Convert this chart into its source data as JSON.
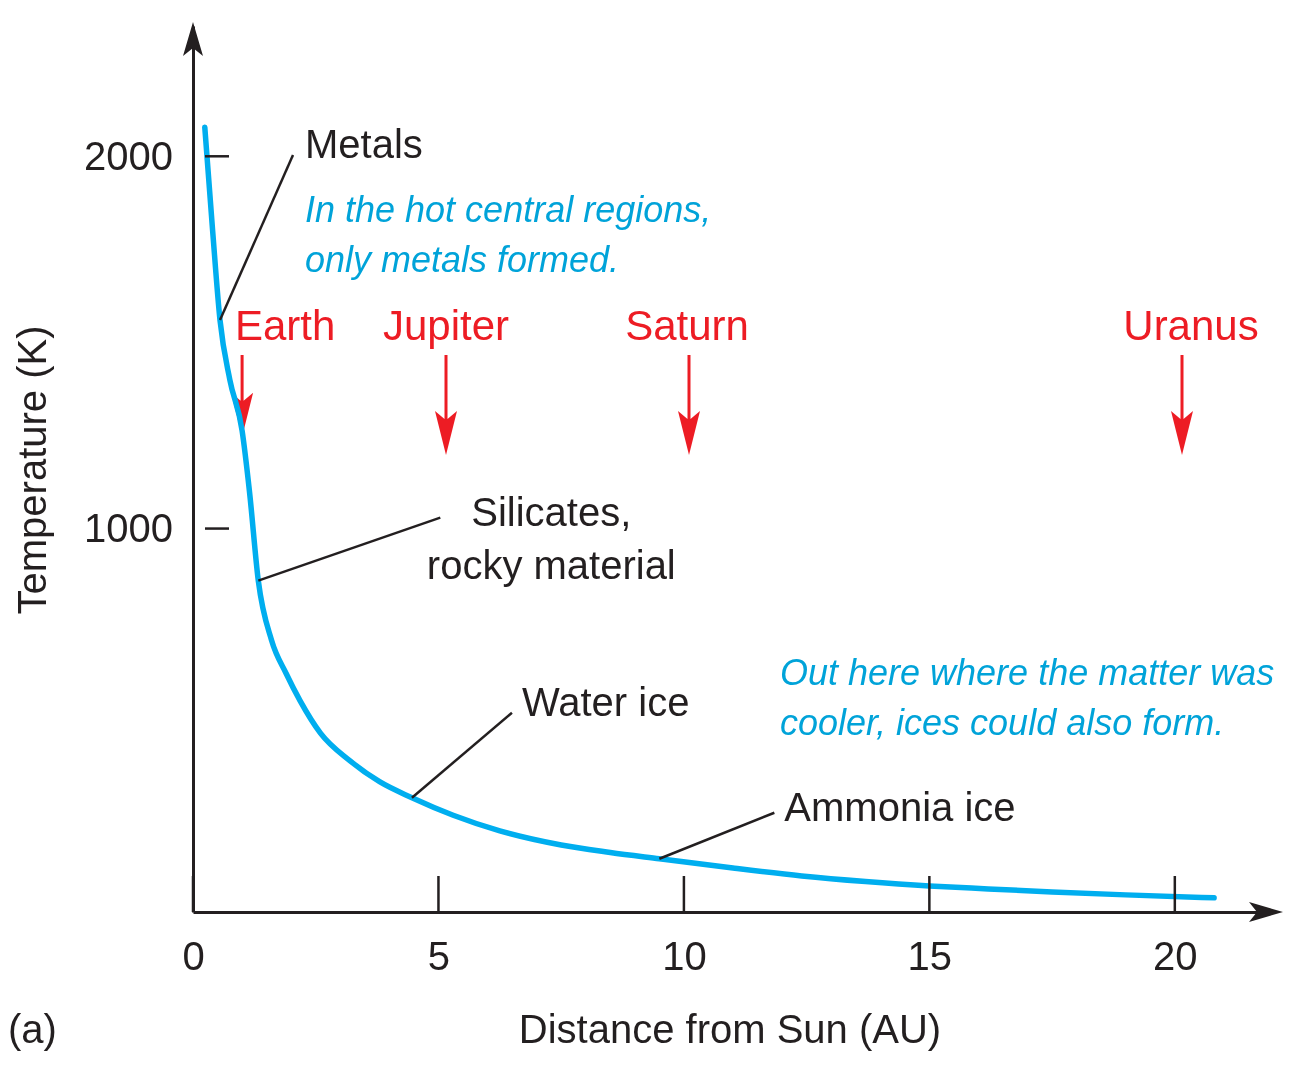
{
  "chart_data": {
    "type": "line",
    "xlabel": "Distance from Sun (AU)",
    "ylabel": "Temperature (K)",
    "xlim": [
      0,
      22
    ],
    "ylim": [
      -30,
      2350
    ],
    "xticks": [
      0,
      5,
      10,
      15,
      20
    ],
    "yticks": [
      {
        "value": 1000,
        "label": "1000"
      },
      {
        "value": 2000,
        "label": "2000"
      }
    ],
    "x": [
      0.24,
      0.4,
      0.55,
      0.75,
      1,
      1.15,
      1.33,
      1.6,
      1.9,
      2.18,
      2.6,
      3.2,
      3.8,
      4.46,
      5.3,
      6.25,
      7.5,
      8.5,
      9.5,
      11,
      12.4,
      13.7,
      15,
      16.2,
      17.5,
      19,
      20.8
    ],
    "series": [
      {
        "color": "#00aeef",
        "values": [
          2078,
          1800,
          1560,
          1400,
          1263,
          1100,
          860,
          700,
          610,
          538,
          450,
          376,
          320,
          277,
          230,
          188,
          150,
          130,
          113,
          88,
          67,
          52,
          40,
          32,
          24,
          16,
          8
        ]
      }
    ],
    "marker": "none",
    "line_style": "solid",
    "grid": false,
    "annotations": [
      {
        "text": "Metals",
        "x": 0.55,
        "y": 1560
      },
      {
        "text": "Silicates, rocky material",
        "x": 1.33,
        "y": 860
      },
      {
        "text": "Water ice",
        "x": 4.46,
        "y": 277
      },
      {
        "text": "Ammonia ice",
        "x": 9.5,
        "y": 113
      },
      {
        "text": "Earth",
        "x": 1,
        "y": 1263
      },
      "Jupiter",
      "Saturn",
      "Uranus",
      "In the hot central regions, only metals formed.",
      "Out here where the matter was cooler, ices could also form.",
      "(a)"
    ]
  }
}
